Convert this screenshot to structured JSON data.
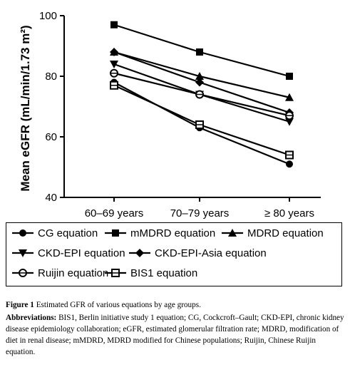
{
  "chart_data": {
    "type": "line",
    "ylabel": "Mean eGFR (mL/min/1.73 m²)",
    "xlabel": "",
    "categories": [
      "60–69 years",
      "70–79 years",
      "≥ 80 years"
    ],
    "ylim": [
      40,
      100
    ],
    "yticks": [
      40,
      60,
      80,
      100
    ],
    "grid": false,
    "legend_position": "bottom",
    "series": [
      {
        "name": "CG equation",
        "marker": "circle",
        "values": [
          78,
          63,
          51
        ]
      },
      {
        "name": "mMDRD equation",
        "marker": "square",
        "values": [
          97,
          88,
          80
        ]
      },
      {
        "name": "MDRD equation",
        "marker": "triangle-up",
        "values": [
          88,
          80,
          73
        ]
      },
      {
        "name": "CKD-EPI equation",
        "marker": "triangle-down",
        "values": [
          84,
          74,
          65
        ]
      },
      {
        "name": "CKD-EPI-Asia equation",
        "marker": "diamond",
        "values": [
          88,
          78,
          68
        ]
      },
      {
        "name": "Ruijin equation",
        "marker": "circle-open",
        "values": [
          81,
          74,
          67
        ]
      },
      {
        "name": "BIS1 equation",
        "marker": "square-open",
        "values": [
          77,
          64,
          54
        ]
      }
    ]
  },
  "caption": {
    "figure_label": "Figure 1",
    "figure_text": "Estimated GFR of various equations by age groups.",
    "abbrev_label": "Abbreviations:",
    "abbrev_text": "BIS1, Berlin initiative study 1 equation; CG, Cockcroft–Gault; CKD-EPI, chronic kidney disease epidemiology collaboration; eGFR, estimated glomerular filtration rate; MDRD, modification of diet in renal disease; mMDRD, MDRD modified for Chinese populations; Ruijin, Chinese Ruijin equation."
  }
}
